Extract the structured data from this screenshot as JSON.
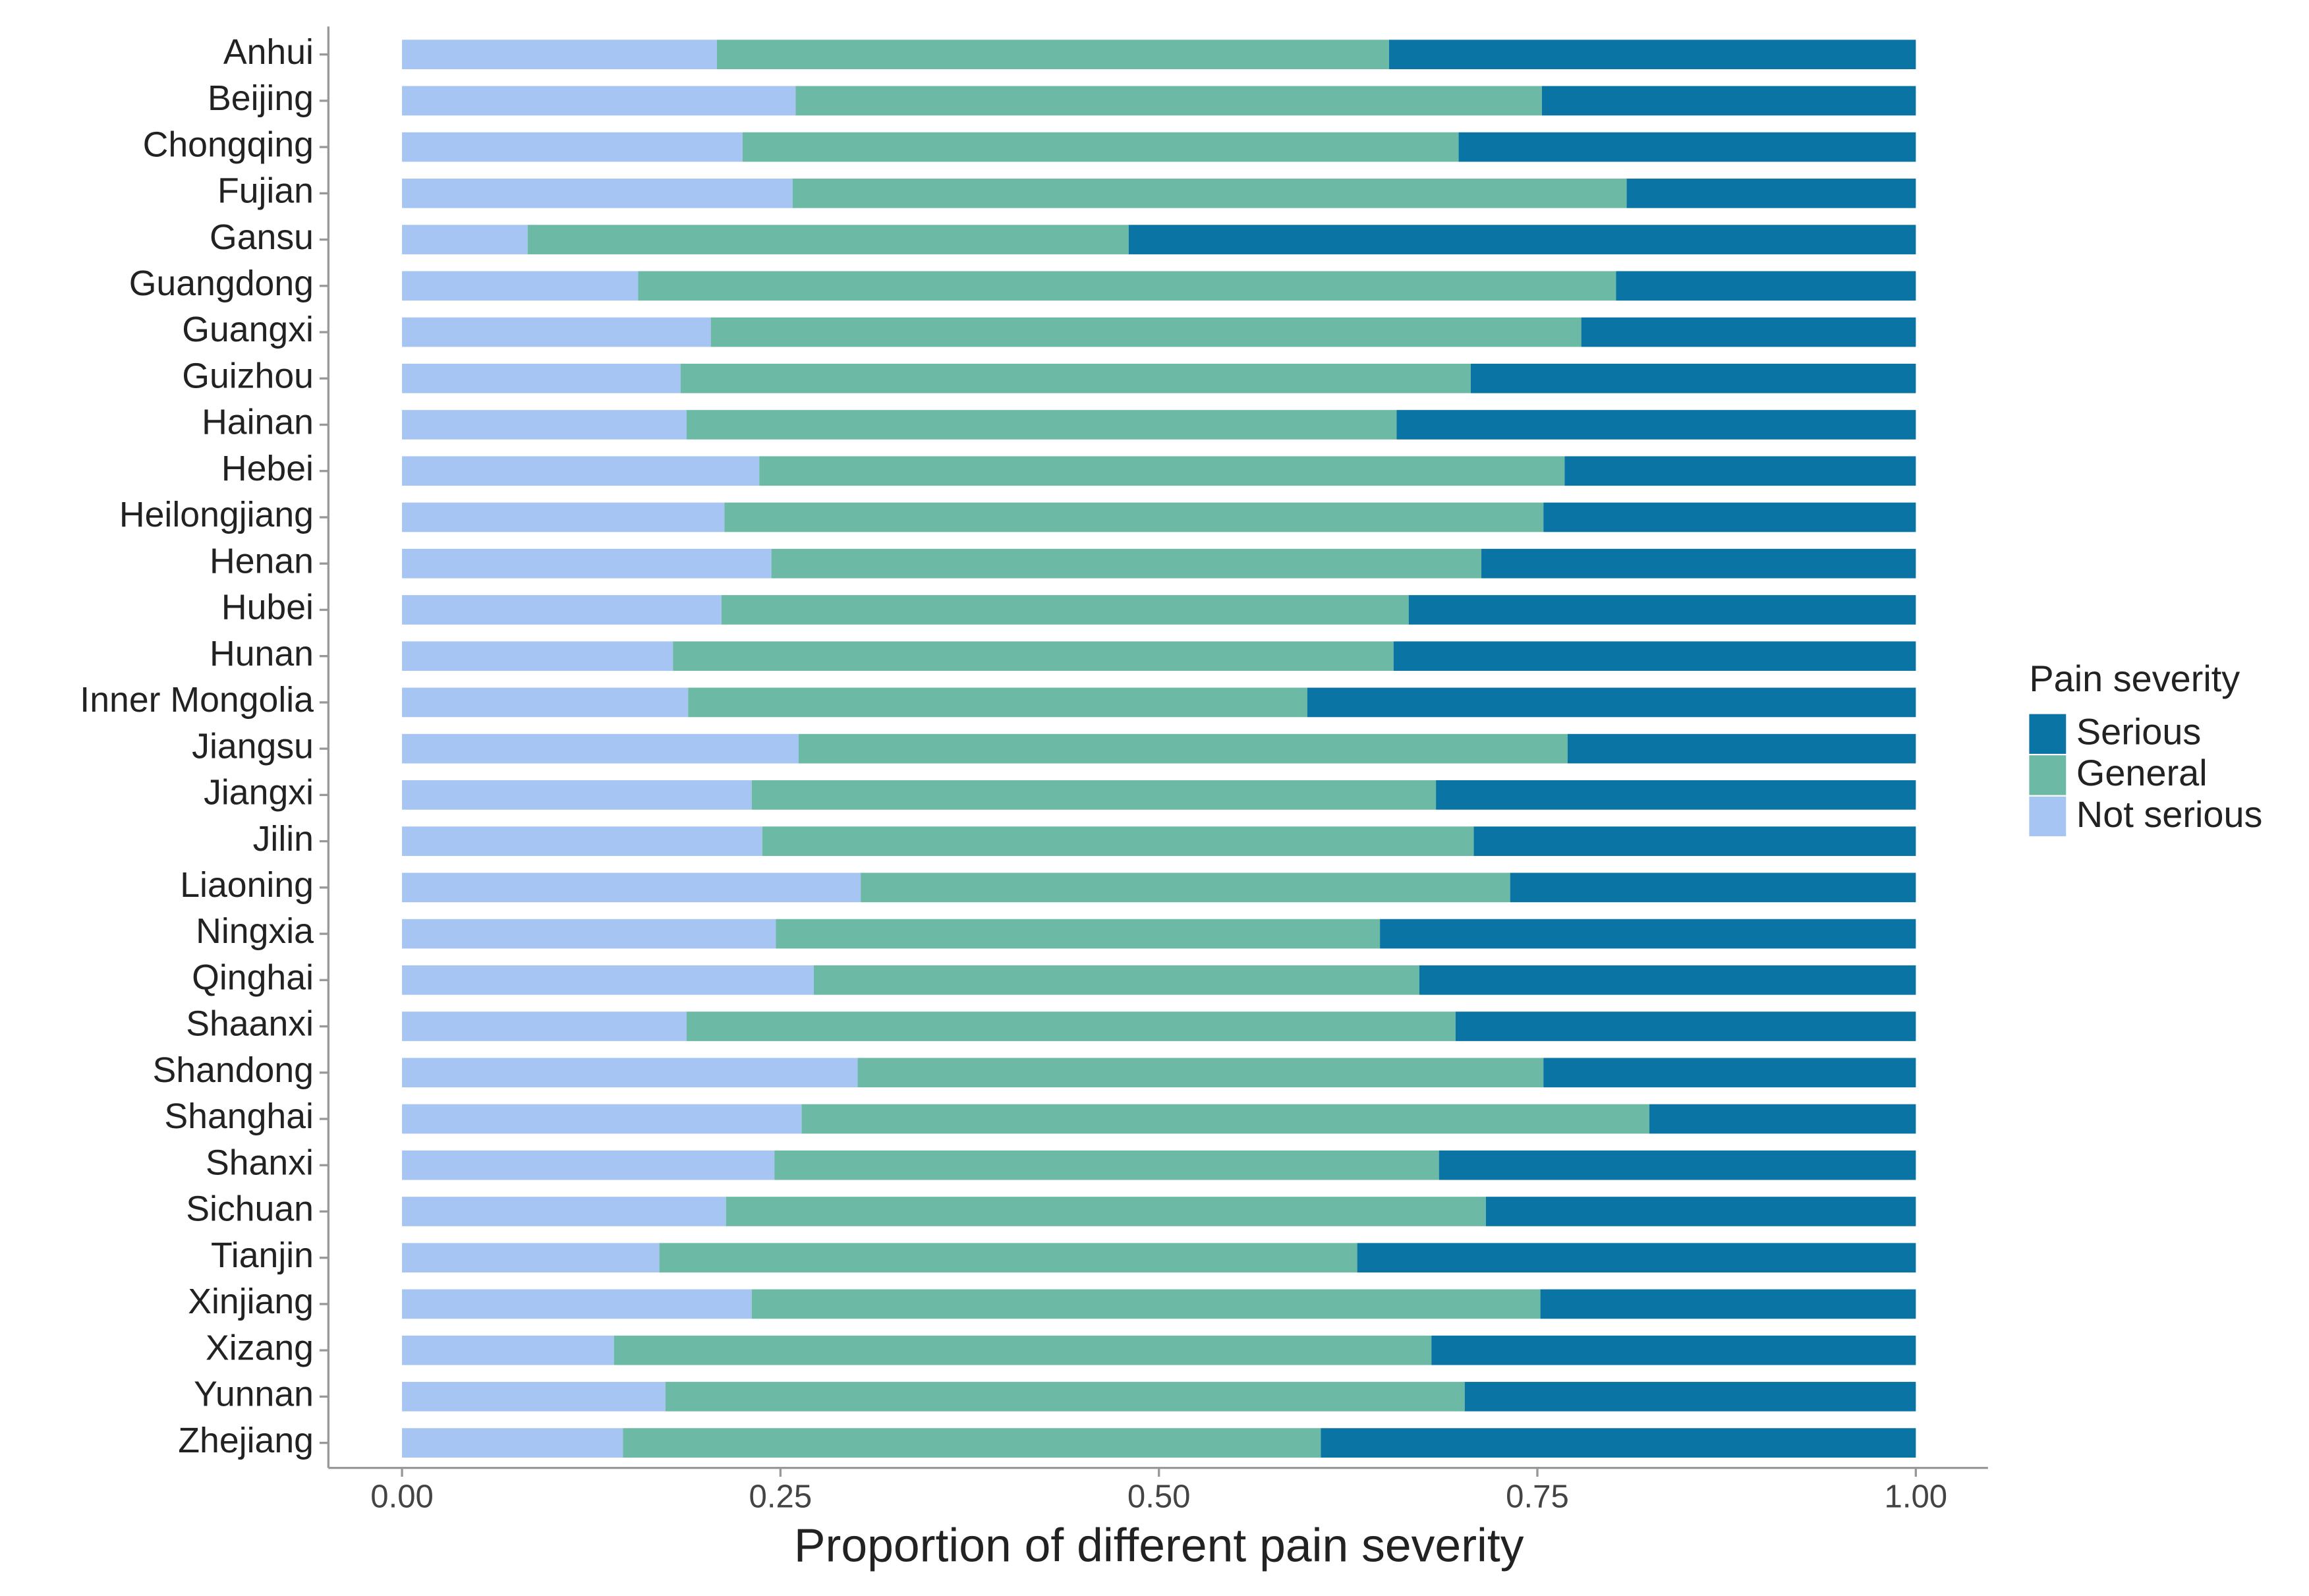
{
  "chart_data": {
    "type": "stacked-barh",
    "x_label": "Proportion of different pain severity",
    "legend_title": "Pain severity",
    "legend": "right",
    "categories": [
      "Anhui",
      "Beijing",
      "Chongqing",
      "Fujian",
      "Gansu",
      "Guangdong",
      "Guangxi",
      "Guizhou",
      "Hainan",
      "Hebei",
      "Heilongjiang",
      "Henan",
      "Hubei",
      "Hunan",
      "Inner Mongolia",
      "Jiangsu",
      "Jiangxi",
      "Jilin",
      "Liaoning",
      "Ningxia",
      "Qinghai",
      "Shaanxi",
      "Shandong",
      "Shanghai",
      "Shanxi",
      "Sichuan",
      "Tianjin",
      "Xinjiang",
      "Xizang",
      "Yunnan",
      "Zhejiang"
    ],
    "series": [
      {
        "name": "Serious",
        "color": "#0a75a5",
        "values": [
          0.348,
          0.247,
          0.302,
          0.191,
          0.52,
          0.198,
          0.221,
          0.294,
          0.343,
          0.232,
          0.246,
          0.287,
          0.335,
          0.345,
          0.402,
          0.23,
          0.317,
          0.292,
          0.268,
          0.354,
          0.328,
          0.304,
          0.246,
          0.176,
          0.315,
          0.284,
          0.369,
          0.248,
          0.32,
          0.298,
          0.393
        ]
      },
      {
        "name": "General",
        "color": "#6cb9a5",
        "values": [
          0.444,
          0.493,
          0.473,
          0.551,
          0.397,
          0.646,
          0.575,
          0.522,
          0.469,
          0.532,
          0.541,
          0.469,
          0.454,
          0.476,
          0.409,
          0.508,
          0.452,
          0.47,
          0.429,
          0.399,
          0.4,
          0.508,
          0.453,
          0.56,
          0.439,
          0.502,
          0.461,
          0.521,
          0.54,
          0.528,
          0.461
        ]
      },
      {
        "name": "Not serious",
        "color": "#a6c5f2",
        "values": [
          0.208,
          0.26,
          0.225,
          0.258,
          0.083,
          0.156,
          0.204,
          0.184,
          0.188,
          0.236,
          0.213,
          0.244,
          0.211,
          0.179,
          0.189,
          0.262,
          0.231,
          0.238,
          0.303,
          0.247,
          0.272,
          0.188,
          0.301,
          0.264,
          0.246,
          0.214,
          0.17,
          0.231,
          0.14,
          0.174,
          0.146
        ]
      }
    ],
    "xlim": [
      0,
      1
    ],
    "xticks": [
      {
        "value": 0,
        "label": "0.00"
      },
      0.25,
      {
        "value": 0.5,
        "label": "0.50"
      },
      0.75,
      {
        "value": 1,
        "label": "1.00"
      }
    ]
  }
}
